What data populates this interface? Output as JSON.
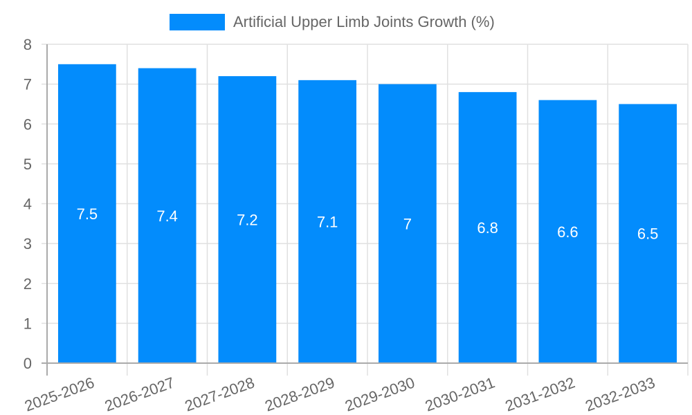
{
  "legend": {
    "label": "Artificial Upper Limb Joints Growth (%)",
    "color": "#038cfc"
  },
  "chart_data": {
    "type": "bar",
    "title": "",
    "xlabel": "",
    "ylabel": "",
    "categories": [
      "2025-2026",
      "2026-2027",
      "2027-2028",
      "2028-2029",
      "2029-2030",
      "2030-2031",
      "2031-2032",
      "2032-2033"
    ],
    "series": [
      {
        "name": "Artificial Upper Limb Joints Growth (%)",
        "values": [
          7.5,
          7.4,
          7.2,
          7.1,
          7,
          6.8,
          6.6,
          6.5
        ],
        "color": "#038cfc"
      }
    ],
    "data_labels": [
      "7.5",
      "7.4",
      "7.2",
      "7.1",
      "7",
      "6.8",
      "6.6",
      "6.5"
    ],
    "ylim": [
      0,
      8
    ],
    "yticks": [
      0,
      1,
      2,
      3,
      4,
      5,
      6,
      7,
      8
    ],
    "grid": true,
    "legend_position": "top",
    "x_tick_rotation": -20
  }
}
